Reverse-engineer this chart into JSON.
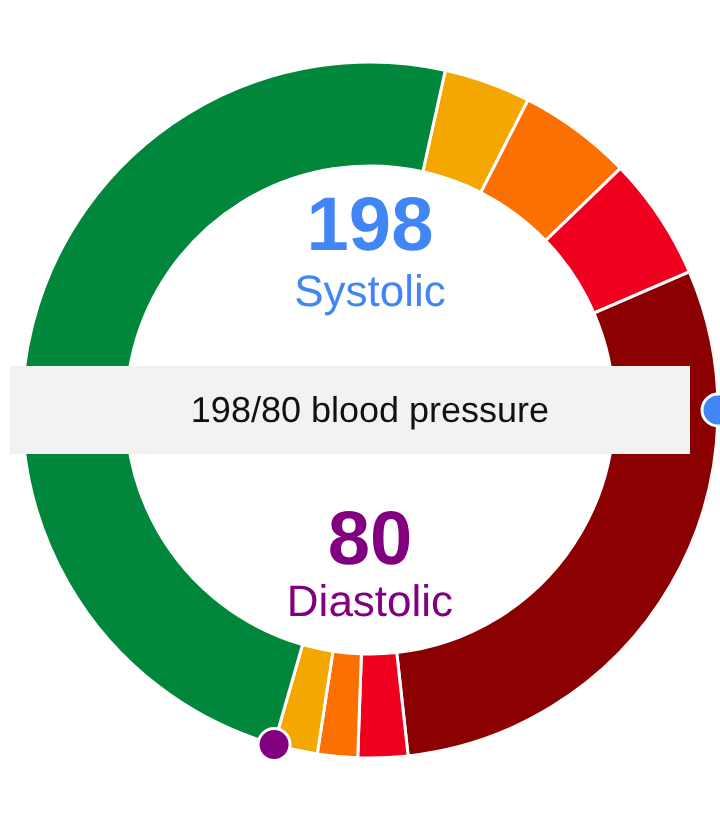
{
  "chart_data": {
    "type": "donut",
    "title": "198/80 blood pressure",
    "annotations": [
      "198",
      "Systolic",
      "80",
      "Diastolic"
    ],
    "categories": [
      null,
      null,
      null,
      null,
      null,
      null,
      null,
      null
    ],
    "values": [
      4.03,
      5.28,
      5.72,
      29.75,
      2.31,
      1.86,
      2.03,
      49.02
    ],
    "colors": [
      "#f4a700",
      "#fb7000",
      "#f0001f",
      "#8b0000",
      "#f0001f",
      "#fb7000",
      "#f4a700",
      "#00873c"
    ]
  }
}
